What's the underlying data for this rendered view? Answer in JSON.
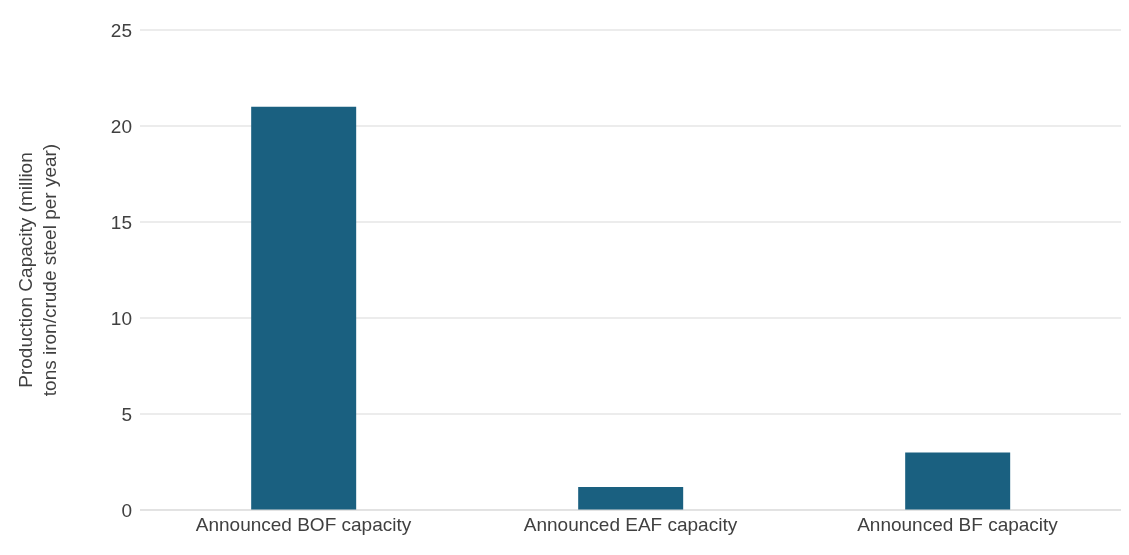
{
  "chart_data": {
    "type": "bar",
    "ylabel": "Production Capacity (million tons iron/crude steel per year)",
    "categories": [
      "Announced BOF capacity",
      "Announced EAF capacity",
      "Announced BF capacity"
    ],
    "values": [
      21,
      1.2,
      3
    ],
    "color": "#1a6080",
    "ylim": [
      0,
      25
    ],
    "yticks": [
      0,
      5,
      10,
      15,
      20,
      25
    ],
    "grid": "y"
  }
}
